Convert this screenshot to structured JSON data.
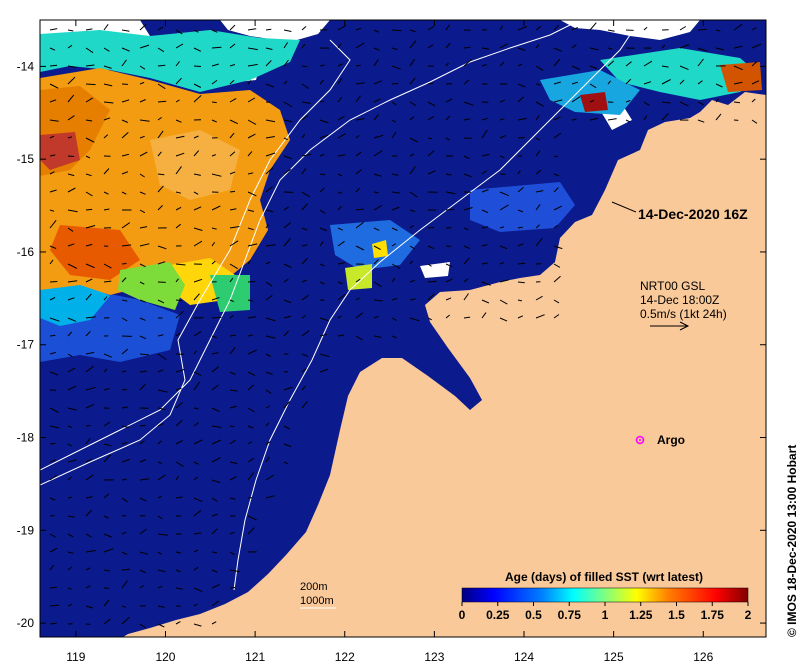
{
  "map": {
    "lon_ticks": [
      "119",
      "120",
      "121",
      "122",
      "123",
      "124",
      "125",
      "126"
    ],
    "lat_ticks": [
      "-14",
      "-15",
      "-16",
      "-17",
      "-18",
      "-19",
      "-20"
    ],
    "lon_range": [
      118.6,
      126.7
    ],
    "lat_range": [
      -20.15,
      -13.5
    ],
    "colors": {
      "land": "#fac99a",
      "ocean_deep": "#0b1a8c",
      "cloud_gap": "#ffffff",
      "contour": "#ffffff",
      "argo_marker": "#ff00ff"
    }
  },
  "annotations": {
    "timestamp": "14-Dec-2020 16Z",
    "current_source": "NRT00 GSL",
    "current_time": "14-Dec 18:00Z",
    "current_scale": "0.5m/s (1kt 24h)",
    "argo_label": "Argo",
    "depth_200": "200m",
    "depth_1000": "1000m",
    "credit": "© IMOS 18-Dec-2020 13:00 Hobart"
  },
  "colorbar": {
    "title": "Age (days) of filled SST (wrt latest)",
    "tick_labels": [
      "0",
      "0.25",
      "0.5",
      "0.75",
      "1",
      "1.25",
      "1.5",
      "1.75",
      "2"
    ],
    "range": [
      0,
      2
    ],
    "stops": [
      "#00007f",
      "#0000ff",
      "#0080ff",
      "#00ffff",
      "#80ff80",
      "#ffff00",
      "#ff8000",
      "#ff0000",
      "#7f0000"
    ]
  }
}
